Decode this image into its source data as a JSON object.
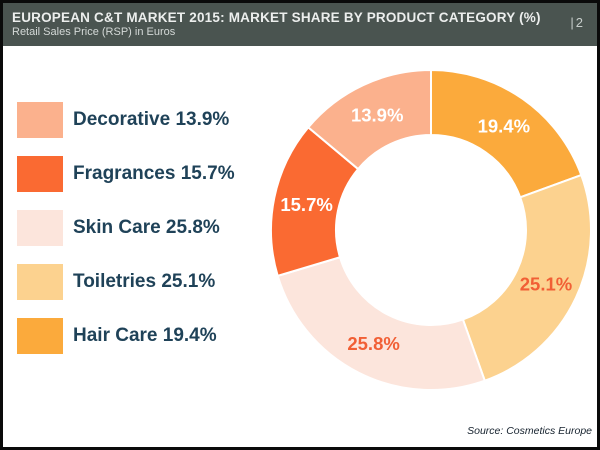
{
  "header": {
    "title": "EUROPEAN C&T MARKET 2015: MARKET SHARE BY PRODUCT CATEGORY (%)",
    "subtitle": "Retail Sales Price (RSP) in Euros",
    "page_number": "|2",
    "background_color": "#4a5450"
  },
  "legend": {
    "items": [
      {
        "label": "Decorative 13.9%"
      },
      {
        "label": "Fragrances 15.7%"
      },
      {
        "label": "Skin Care 25.8%"
      },
      {
        "label": "Toiletries 25.1%"
      },
      {
        "label": "Hair Care 19.4%"
      }
    ]
  },
  "chart_data": {
    "type": "pie",
    "donut": true,
    "title": "EUROPEAN C&T MARKET 2015: MARKET SHARE BY PRODUCT CATEGORY (%)",
    "subtitle": "Retail Sales Price (RSP) in Euros",
    "unit": "%",
    "categories": [
      "Decorative",
      "Fragrances",
      "Skin Care",
      "Toiletries",
      "Hair Care"
    ],
    "values": [
      13.9,
      15.7,
      25.8,
      25.1,
      19.4
    ],
    "colors": [
      "#fbb18d",
      "#fa6a32",
      "#fce5dc",
      "#fcd28f",
      "#fbaa3c"
    ],
    "label_colors": [
      "#ffffff",
      "#ffffff",
      "#f15f35",
      "#f15f35",
      "#ffffff"
    ],
    "slice_separator_color": "#ffffff",
    "draw_index_order": [
      4,
      3,
      2,
      1,
      0
    ],
    "start_angle_deg": 0,
    "direction": "clockwise",
    "legend_position": "left"
  },
  "footer": {
    "source": "Source: Cosmetics Europe"
  }
}
